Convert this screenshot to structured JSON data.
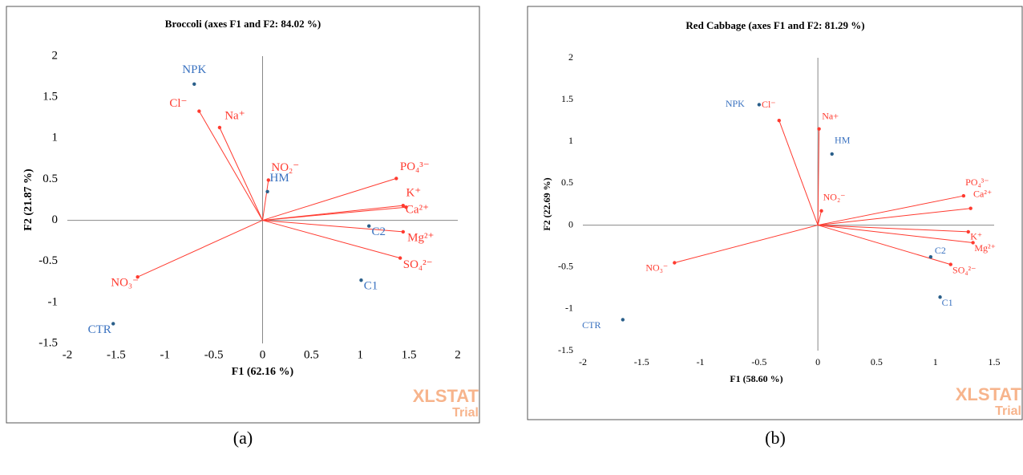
{
  "chart_data": [
    {
      "type": "biplot",
      "title": "Broccoli (axes F1 and F2: 84.02 %)",
      "xlabel": "F1 (62.16 %)",
      "ylabel": "F2 (21.87 %)",
      "xlim": [
        -2,
        2
      ],
      "xticks": [
        -2,
        -1.5,
        -1,
        -0.5,
        0,
        0.5,
        1,
        1.5,
        2
      ],
      "ylim": [
        -1.5,
        2
      ],
      "yticks": [
        -1.5,
        -1,
        -0.5,
        0,
        0.5,
        1,
        1.5,
        2
      ],
      "series": [
        {
          "color": "#ff3b30",
          "vectors": true,
          "labels": [
            "Cl⁻",
            "Na⁺",
            "NO₂⁻",
            "PO₄³⁻",
            "K⁺",
            "Ca²⁺",
            "Mg²⁺",
            "SO₄²⁻",
            "NO₃⁻"
          ],
          "x": [
            -0.65,
            -0.44,
            0.06,
            1.37,
            1.44,
            1.47,
            1.44,
            1.41,
            -1.28
          ],
          "values": [
            1.33,
            1.13,
            0.49,
            0.51,
            0.18,
            0.16,
            -0.14,
            -0.46,
            -0.69
          ]
        },
        {
          "color": "#3a72c0",
          "vectors": false,
          "labels": [
            "NPK",
            "HM",
            "C2",
            "C1",
            "CTR"
          ],
          "x": [
            -0.7,
            0.05,
            1.09,
            1.01,
            -1.53
          ],
          "values": [
            1.66,
            0.35,
            -0.07,
            -0.73,
            -1.26
          ]
        }
      ],
      "watermark": [
        "XLSTAT",
        "Trial"
      ],
      "caption": "(a)"
    },
    {
      "type": "biplot",
      "title": "Red Cabbage (axes F1 and F2: 81.29 %)",
      "xlabel": "F1 (58.60 %)",
      "ylabel": "F2 (22.69 %)",
      "xlim": [
        -2,
        1.5
      ],
      "xticks": [
        -2,
        -1.5,
        -1,
        -0.5,
        0,
        0.5,
        1,
        1.5
      ],
      "ylim": [
        -1.5,
        2
      ],
      "yticks": [
        -1.5,
        -1,
        -0.5,
        0,
        0.5,
        1,
        1.5,
        2
      ],
      "series": [
        {
          "color": "#ff3b30",
          "vectors": true,
          "labels": [
            "Cl⁻",
            "Na+",
            "NO₂⁻",
            "PO₄³⁻",
            "Ca²⁺",
            "K⁺",
            "Mg²⁺",
            "SO₄²⁻",
            "NO₃⁻"
          ],
          "x": [
            -0.33,
            0.01,
            0.03,
            1.24,
            1.3,
            1.28,
            1.32,
            1.13,
            -1.22
          ],
          "values": [
            1.25,
            1.15,
            0.17,
            0.35,
            0.2,
            -0.08,
            -0.21,
            -0.47,
            -0.45
          ]
        },
        {
          "color": "#3a72c0",
          "vectors": false,
          "labels": [
            "NPK",
            "HM",
            "C2",
            "C1",
            "CTR"
          ],
          "x": [
            -0.5,
            0.12,
            0.96,
            1.04,
            -1.66
          ],
          "values": [
            1.44,
            0.85,
            -0.38,
            -0.86,
            -1.13
          ]
        }
      ],
      "watermark": [
        "XLSTAT",
        "Trial"
      ],
      "caption": "(b)"
    }
  ]
}
